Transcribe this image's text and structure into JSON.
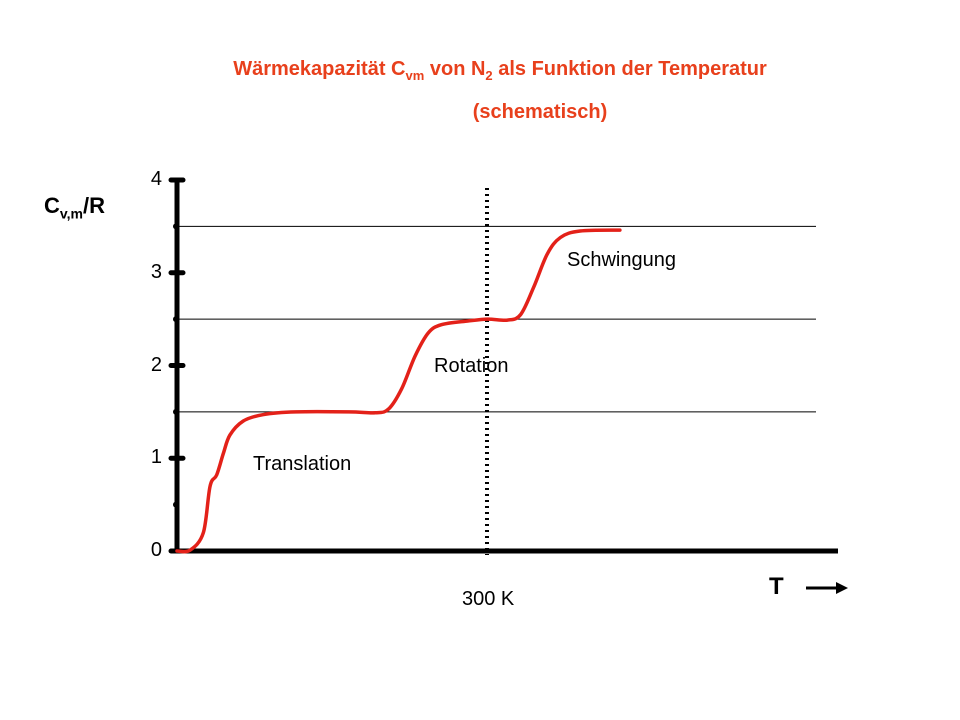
{
  "title": {
    "line1_prefix": "Wärmekapazität C",
    "line1_sub1": "vm",
    "line1_mid": " von N",
    "line1_sub2": "2",
    "line1_suffix": " als Funktion der Temperatur",
    "line2": "(schematisch)"
  },
  "colors": {
    "title": "#e8401c",
    "curve": "#e32119",
    "axis": "#000000"
  },
  "chart_data": {
    "type": "line",
    "ylabel": {
      "main": "C",
      "sub": "v,m",
      "suffix": "/R"
    },
    "xlabel": "T",
    "ylim": [
      0,
      4
    ],
    "yticks": [
      "0",
      "1",
      "2",
      "3",
      "4"
    ],
    "plateaus": [
      1.5,
      2.5,
      3.5
    ],
    "marker": {
      "label": "300 K"
    },
    "regions": [
      "Translation",
      "Rotation",
      "Schwingung"
    ],
    "series": [
      {
        "values": [
          [
            0.0,
            0.0
          ],
          [
            0.02,
            0.01
          ],
          [
            0.04,
            0.2
          ],
          [
            0.05,
            0.7
          ],
          [
            0.06,
            0.82
          ],
          [
            0.07,
            1.05
          ],
          [
            0.08,
            1.25
          ],
          [
            0.1,
            1.4
          ],
          [
            0.13,
            1.47
          ],
          [
            0.18,
            1.5
          ],
          [
            0.26,
            1.5
          ],
          [
            0.3,
            1.49
          ],
          [
            0.32,
            1.53
          ],
          [
            0.34,
            1.75
          ],
          [
            0.36,
            2.1
          ],
          [
            0.38,
            2.35
          ],
          [
            0.4,
            2.44
          ],
          [
            0.44,
            2.48
          ],
          [
            0.47,
            2.5
          ],
          [
            0.5,
            2.49
          ],
          [
            0.52,
            2.55
          ],
          [
            0.54,
            2.85
          ],
          [
            0.56,
            3.2
          ],
          [
            0.58,
            3.38
          ],
          [
            0.61,
            3.45
          ],
          [
            0.67,
            3.46
          ]
        ]
      }
    ]
  }
}
